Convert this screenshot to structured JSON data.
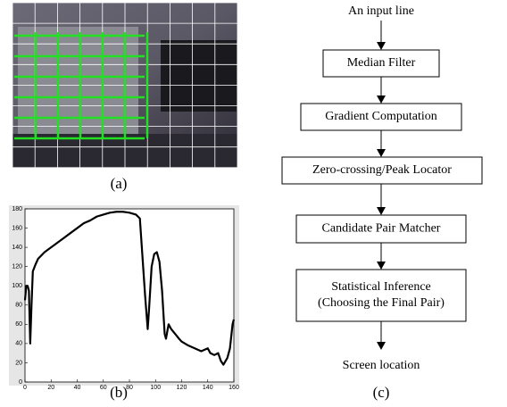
{
  "figure_a": {
    "caption": "(a)"
  },
  "chart_data": {
    "type": "line",
    "caption": "(b)",
    "x": [
      0,
      1,
      2,
      3,
      4,
      5,
      6,
      8,
      10,
      15,
      20,
      25,
      30,
      35,
      40,
      45,
      50,
      55,
      60,
      65,
      70,
      75,
      80,
      85,
      88,
      90,
      92,
      94,
      95,
      97,
      99,
      101,
      103,
      105,
      107,
      108,
      110,
      112,
      115,
      118,
      120,
      125,
      130,
      135,
      140,
      142,
      145,
      148,
      150,
      152,
      155,
      157,
      159,
      160
    ],
    "series": [
      {
        "color": "#000000",
        "values": [
          85,
          100,
          100,
          95,
          40,
          80,
          115,
          122,
          128,
          135,
          140,
          145,
          150,
          155,
          160,
          165,
          168,
          172,
          174,
          176,
          177,
          177,
          176,
          174,
          170,
          130,
          90,
          55,
          75,
          120,
          133,
          135,
          125,
          95,
          50,
          45,
          60,
          55,
          50,
          45,
          42,
          38,
          35,
          32,
          35,
          30,
          28,
          30,
          22,
          18,
          25,
          35,
          60,
          65
        ]
      }
    ],
    "xlim": [
      0,
      160
    ],
    "xticks": [
      0,
      20,
      40,
      60,
      80,
      100,
      120,
      140,
      160
    ],
    "ylim": [
      0,
      180
    ],
    "yticks": [
      0,
      20,
      40,
      60,
      80,
      100,
      120,
      140,
      160,
      180
    ]
  },
  "flowchart": {
    "start": "An input line",
    "nodes": [
      {
        "lines": [
          "Median Filter"
        ]
      },
      {
        "lines": [
          "Gradient Computation"
        ]
      },
      {
        "lines": [
          "Zero-crossing/Peak Locator"
        ]
      },
      {
        "lines": [
          "Candidate Pair Matcher"
        ]
      },
      {
        "lines": [
          "Statistical Inference",
          "(Choosing the Final Pair)"
        ]
      }
    ],
    "end": "Screen location",
    "caption": "(c)"
  }
}
